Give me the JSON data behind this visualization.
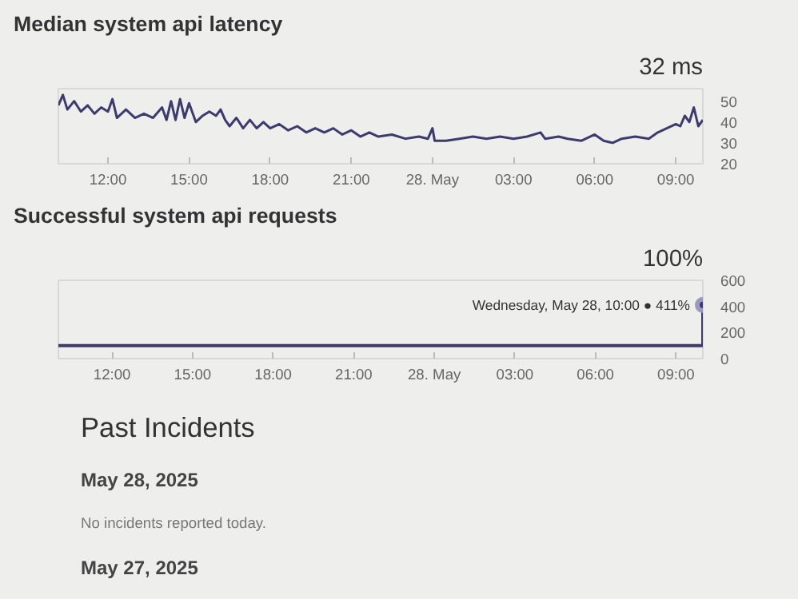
{
  "chart_data": [
    {
      "type": "line",
      "title": "Median system api latency",
      "subtitle": "32 ms",
      "grid": false,
      "marker": "none",
      "line_style": "solid",
      "xlim": [
        "2025-05-27T10:10",
        "2025-05-28T10:00"
      ],
      "ylim": [
        20,
        56
      ],
      "yticks": [
        20,
        30,
        40,
        50
      ],
      "xticks": [
        {
          "value": "2025-05-27T12:00",
          "label": "12:00"
        },
        {
          "value": "2025-05-27T15:00",
          "label": "15:00"
        },
        {
          "value": "2025-05-27T18:00",
          "label": "18:00"
        },
        {
          "value": "2025-05-27T21:00",
          "label": "21:00"
        },
        {
          "value": "2025-05-28T00:00",
          "label": "28. May"
        },
        {
          "value": "2025-05-28T03:00",
          "label": "03:00"
        },
        {
          "value": "2025-05-28T06:00",
          "label": "06:00"
        },
        {
          "value": "2025-05-28T09:00",
          "label": "09:00"
        }
      ],
      "series": [
        {
          "color": "#3d3b6e",
          "x": [
            "2025-05-27T10:10",
            "2025-05-27T10:20",
            "2025-05-27T10:30",
            "2025-05-27T10:45",
            "2025-05-27T11:00",
            "2025-05-27T11:15",
            "2025-05-27T11:30",
            "2025-05-27T11:45",
            "2025-05-27T12:00",
            "2025-05-27T12:10",
            "2025-05-27T12:20",
            "2025-05-27T12:40",
            "2025-05-27T13:00",
            "2025-05-27T13:20",
            "2025-05-27T13:40",
            "2025-05-27T14:00",
            "2025-05-27T14:10",
            "2025-05-27T14:20",
            "2025-05-27T14:30",
            "2025-05-27T14:40",
            "2025-05-27T14:50",
            "2025-05-27T15:00",
            "2025-05-27T15:15",
            "2025-05-27T15:30",
            "2025-05-27T15:45",
            "2025-05-27T16:00",
            "2025-05-27T16:10",
            "2025-05-27T16:20",
            "2025-05-27T16:30",
            "2025-05-27T16:45",
            "2025-05-27T17:00",
            "2025-05-27T17:15",
            "2025-05-27T17:30",
            "2025-05-27T17:45",
            "2025-05-27T18:00",
            "2025-05-27T18:20",
            "2025-05-27T18:40",
            "2025-05-27T19:00",
            "2025-05-27T19:20",
            "2025-05-27T19:40",
            "2025-05-27T20:00",
            "2025-05-27T20:20",
            "2025-05-27T20:40",
            "2025-05-27T21:00",
            "2025-05-27T21:20",
            "2025-05-27T21:40",
            "2025-05-27T22:00",
            "2025-05-27T22:30",
            "2025-05-27T23:00",
            "2025-05-27T23:30",
            "2025-05-27T23:50",
            "2025-05-28T00:00",
            "2025-05-28T00:05",
            "2025-05-28T00:30",
            "2025-05-28T01:00",
            "2025-05-28T01:30",
            "2025-05-28T02:00",
            "2025-05-28T02:30",
            "2025-05-28T03:00",
            "2025-05-28T03:30",
            "2025-05-28T04:00",
            "2025-05-28T04:10",
            "2025-05-28T04:40",
            "2025-05-28T05:00",
            "2025-05-28T05:30",
            "2025-05-28T06:00",
            "2025-05-28T06:20",
            "2025-05-28T06:40",
            "2025-05-28T07:00",
            "2025-05-28T07:30",
            "2025-05-28T08:00",
            "2025-05-28T08:20",
            "2025-05-28T08:40",
            "2025-05-28T09:00",
            "2025-05-28T09:10",
            "2025-05-28T09:20",
            "2025-05-28T09:30",
            "2025-05-28T09:40",
            "2025-05-28T09:50",
            "2025-05-28T10:00"
          ],
          "values": [
            48,
            53,
            46,
            50,
            45,
            48,
            44,
            47,
            45,
            51,
            42,
            46,
            42,
            44,
            42,
            47,
            41,
            50,
            41,
            51,
            42,
            49,
            40,
            43,
            45,
            43,
            46,
            41,
            38,
            42,
            37,
            41,
            37,
            40,
            37,
            39,
            36,
            38,
            35,
            37,
            35,
            37,
            34,
            36,
            33,
            35,
            33,
            34,
            32,
            33,
            32,
            37,
            31,
            31,
            32,
            33,
            32,
            33,
            32,
            33,
            35,
            32,
            33,
            32,
            31,
            34,
            31,
            30,
            32,
            33,
            32,
            35,
            37,
            39,
            38,
            43,
            40,
            47,
            38,
            41
          ]
        }
      ]
    },
    {
      "type": "step",
      "title": "Successful system api requests",
      "subtitle": "100%",
      "grid": false,
      "marker": "none",
      "line_style": "solid",
      "xlim": [
        "2025-05-27T10:00",
        "2025-05-28T10:00"
      ],
      "ylim": [
        0,
        600
      ],
      "yticks": [
        0,
        200,
        400,
        600
      ],
      "xticks": [
        {
          "value": "2025-05-27T12:00",
          "label": "12:00"
        },
        {
          "value": "2025-05-27T15:00",
          "label": "15:00"
        },
        {
          "value": "2025-05-27T18:00",
          "label": "18:00"
        },
        {
          "value": "2025-05-27T21:00",
          "label": "21:00"
        },
        {
          "value": "2025-05-28T00:00",
          "label": "28. May"
        },
        {
          "value": "2025-05-28T03:00",
          "label": "03:00"
        },
        {
          "value": "2025-05-28T06:00",
          "label": "06:00"
        },
        {
          "value": "2025-05-28T09:00",
          "label": "09:00"
        }
      ],
      "annotations": [
        {
          "text": "Wednesday, May 28, 10:00 ● 411%",
          "x": "2025-05-28T10:00",
          "y": 411
        }
      ],
      "series": [
        {
          "color": "#3d3b6e",
          "x": [
            "2025-05-27T10:00",
            "2025-05-27T12:00",
            "2025-05-27T15:00",
            "2025-05-27T18:00",
            "2025-05-27T21:00",
            "2025-05-28T00:00",
            "2025-05-28T03:00",
            "2025-05-28T06:00",
            "2025-05-28T09:00",
            "2025-05-28T10:00"
          ],
          "values": [
            100,
            100,
            100,
            100,
            100,
            100,
            100,
            100,
            100,
            411
          ]
        }
      ]
    },
    {
      "type": "other",
      "title": "Past Incidents",
      "annotations": [
        "May 28, 2025",
        "No incidents reported today.",
        "May 27, 2025"
      ]
    }
  ]
}
